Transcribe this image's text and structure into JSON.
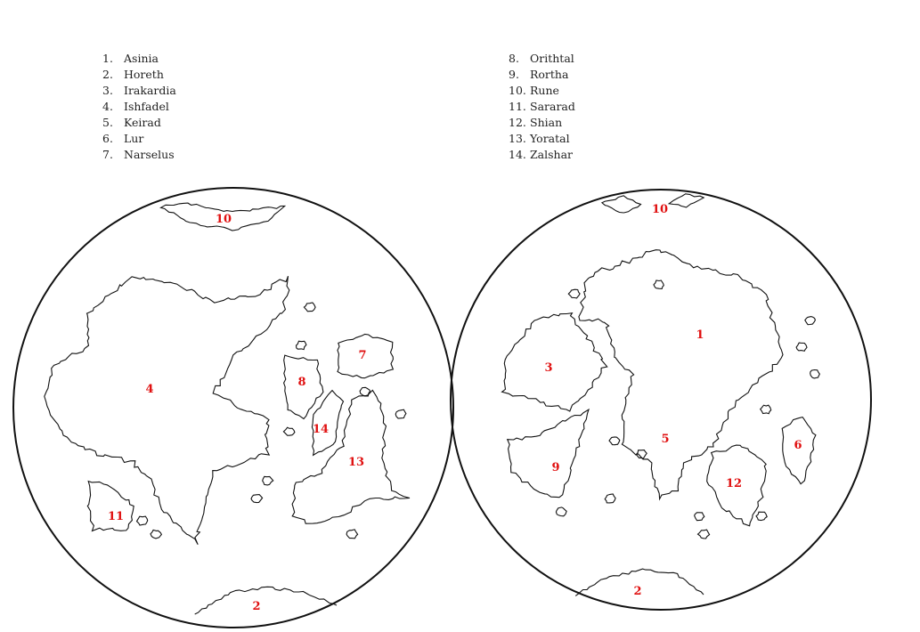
{
  "legend": [
    {
      "num": "1.",
      "name": "Asinia"
    },
    {
      "num": "2.",
      "name": "Horeth"
    },
    {
      "num": "3.",
      "name": "Irakardia"
    },
    {
      "num": "4.",
      "name": "Ishfadel"
    },
    {
      "num": "5.",
      "name": "Keirad"
    },
    {
      "num": "6.",
      "name": "Lur"
    },
    {
      "num": "7.",
      "name": "Narselus"
    },
    {
      "num": "8.",
      "name": "Orithtal"
    },
    {
      "num": "9.",
      "name": "Rortha"
    },
    {
      "num": "10.",
      "name": "Rune"
    },
    {
      "num": "11.",
      "name": "Sararad"
    },
    {
      "num": "12.",
      "name": "Shian"
    },
    {
      "num": "13.",
      "name": "Yoratal"
    },
    {
      "num": "14.",
      "name": "Zalshar"
    }
  ],
  "map_labels": {
    "left": [
      "10",
      "4",
      "8",
      "7",
      "14",
      "13",
      "11",
      "2"
    ],
    "right": [
      "10",
      "1",
      "3",
      "5",
      "6",
      "9",
      "12",
      "2"
    ]
  },
  "colors": {
    "label": "#e01010",
    "outline": "#111111"
  }
}
